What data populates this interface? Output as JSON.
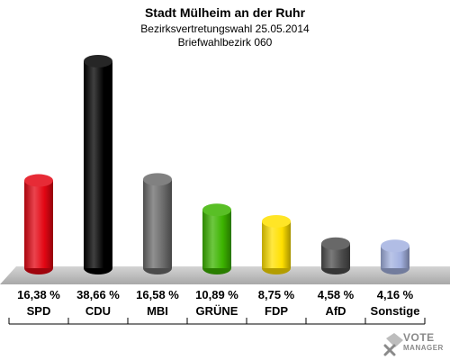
{
  "chart_data": {
    "type": "bar",
    "title": "Stadt Mülheim an der Ruhr",
    "subtitle_1": "Bezirksvertretungswahl 25.05.2014",
    "subtitle_2": "Briefwahlbezirk 060",
    "categories": [
      "SPD",
      "CDU",
      "MBI",
      "GRÜNE",
      "FDP",
      "AfD",
      "Sonstige"
    ],
    "values": [
      16.38,
      38.66,
      16.58,
      10.89,
      8.75,
      4.58,
      4.16
    ],
    "value_labels": [
      "16,38 %",
      "38,66 %",
      "16,58 %",
      "10,89 %",
      "8,75 %",
      "4,58 %",
      "4,16 %"
    ],
    "colors": [
      "#e30613",
      "#000000",
      "#6b6b6b",
      "#3cb400",
      "#ffe000",
      "#4d4d4d",
      "#a3b1e0"
    ],
    "grid": false,
    "legend": "none"
  },
  "watermark": {
    "line1": "VOTE",
    "line2": "MANAGER",
    "icon": "ballot-cross-icon"
  }
}
